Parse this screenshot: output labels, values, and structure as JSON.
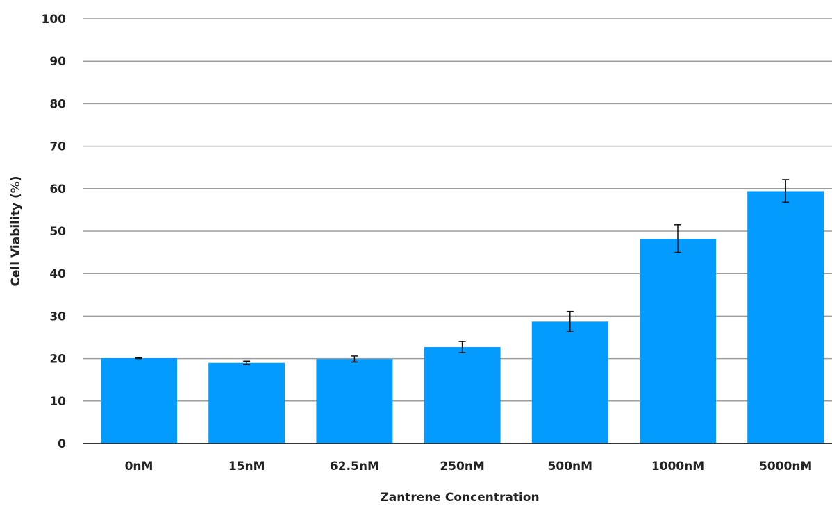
{
  "chart_data": {
    "type": "bar",
    "title": "",
    "xlabel": "Zantrene Concentration",
    "ylabel": "Cell Viability (%)",
    "categories": [
      "0nM",
      "15nM",
      "62.5nM",
      "250nM",
      "500nM",
      "1000nM",
      "5000nM"
    ],
    "values": [
      20.1,
      19.0,
      19.9,
      22.7,
      28.7,
      48.2,
      59.4
    ],
    "error_low": [
      20.0,
      18.6,
      19.2,
      21.4,
      26.3,
      45.0,
      56.8
    ],
    "error_high": [
      20.2,
      19.4,
      20.6,
      24.0,
      31.1,
      51.5,
      62.1
    ],
    "ylim": [
      0,
      100
    ],
    "yticks": [
      0,
      10,
      20,
      30,
      40,
      50,
      60,
      70,
      80,
      90,
      100
    ],
    "grid": true,
    "colors": {
      "bar": "#039BFE",
      "grid": "#9E9E9E",
      "axis": "#333333",
      "error_bar": "#111111"
    }
  }
}
